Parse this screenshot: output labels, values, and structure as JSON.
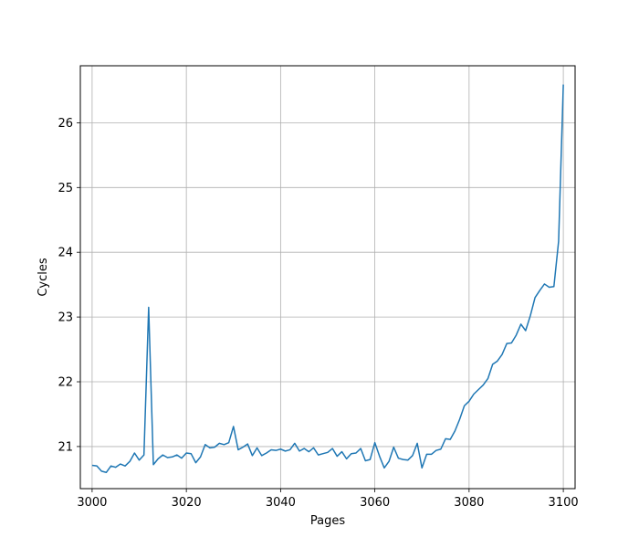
{
  "chart_data": {
    "type": "line",
    "title": "",
    "xlabel": "Pages",
    "ylabel": "Cycles",
    "xlim": [
      2997.5,
      3102.5
    ],
    "ylim": [
      20.35,
      26.88
    ],
    "grid": true,
    "x_ticks": [
      3000,
      3020,
      3040,
      3060,
      3080,
      3100
    ],
    "y_ticks": [
      21,
      22,
      23,
      24,
      25,
      26
    ],
    "series": [
      {
        "color": "#1f77b4",
        "x": [
          3000,
          3001,
          3002,
          3003,
          3004,
          3005,
          3006,
          3007,
          3008,
          3009,
          3010,
          3011,
          3012,
          3013,
          3014,
          3015,
          3016,
          3017,
          3018,
          3019,
          3020,
          3021,
          3022,
          3023,
          3024,
          3025,
          3026,
          3027,
          3028,
          3029,
          3030,
          3031,
          3032,
          3033,
          3034,
          3035,
          3036,
          3037,
          3038,
          3039,
          3040,
          3041,
          3042,
          3043,
          3044,
          3045,
          3046,
          3047,
          3048,
          3049,
          3050,
          3051,
          3052,
          3053,
          3054,
          3055,
          3056,
          3057,
          3058,
          3059,
          3060,
          3061,
          3062,
          3063,
          3064,
          3065,
          3066,
          3067,
          3068,
          3069,
          3070,
          3071,
          3072,
          3073,
          3074,
          3075,
          3076,
          3077,
          3078,
          3079,
          3080,
          3081,
          3082,
          3083,
          3084,
          3085,
          3086,
          3087,
          3088,
          3089,
          3090,
          3091,
          3092,
          3093,
          3094,
          3095,
          3096,
          3097,
          3098,
          3099,
          3100
        ],
        "y": [
          20.71,
          20.7,
          20.62,
          20.6,
          20.7,
          20.68,
          20.73,
          20.7,
          20.77,
          20.9,
          20.79,
          20.87,
          23.15,
          20.72,
          20.81,
          20.87,
          20.83,
          20.84,
          20.87,
          20.82,
          20.9,
          20.89,
          20.75,
          20.84,
          21.03,
          20.98,
          20.99,
          21.05,
          21.03,
          21.06,
          21.31,
          20.95,
          20.99,
          21.04,
          20.86,
          20.98,
          20.86,
          20.9,
          20.95,
          20.94,
          20.96,
          20.93,
          20.95,
          21.05,
          20.93,
          20.97,
          20.92,
          20.98,
          20.87,
          20.89,
          20.91,
          20.97,
          20.85,
          20.92,
          20.81,
          20.89,
          20.9,
          20.97,
          20.78,
          20.8,
          21.06,
          20.85,
          20.67,
          20.77,
          20.99,
          20.82,
          20.8,
          20.79,
          20.86,
          21.05,
          20.67,
          20.88,
          20.88,
          20.94,
          20.96,
          21.12,
          21.11,
          21.24,
          21.42,
          21.63,
          21.7,
          21.81,
          21.88,
          21.95,
          22.05,
          22.27,
          22.32,
          22.42,
          22.59,
          22.6,
          22.72,
          22.89,
          22.79,
          23.02,
          23.3,
          23.41,
          23.51,
          23.46,
          23.47,
          24.17,
          26.59
        ]
      }
    ]
  }
}
